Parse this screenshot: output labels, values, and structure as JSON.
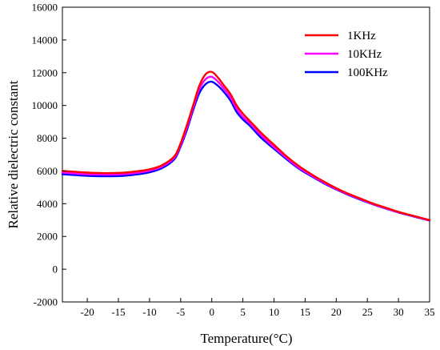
{
  "chart_data": {
    "type": "line",
    "title": "",
    "xlabel": "Temperature(°C)",
    "ylabel": "Relative dielectric constant",
    "xlim": [
      -24,
      35
    ],
    "ylim": [
      -2000,
      16000
    ],
    "xticks": [
      -20,
      -15,
      -10,
      -5,
      0,
      5,
      10,
      15,
      20,
      25,
      30,
      35
    ],
    "yticks": [
      -2000,
      0,
      2000,
      4000,
      6000,
      8000,
      10000,
      12000,
      14000,
      16000
    ],
    "grid": false,
    "legend_position": "top-right",
    "series": [
      {
        "name": "1KHz",
        "color": "#ff0000",
        "x": [
          -24,
          -22,
          -20,
          -18,
          -16,
          -14,
          -12,
          -10,
          -8,
          -6,
          -5,
          -4,
          -3,
          -2,
          -1,
          0,
          1,
          2,
          3,
          4,
          5,
          6,
          7,
          8,
          10,
          12,
          14,
          16,
          18,
          20,
          22,
          24,
          26,
          28,
          30,
          32,
          35
        ],
        "y": [
          6000,
          5950,
          5900,
          5870,
          5870,
          5900,
          5980,
          6100,
          6350,
          6900,
          7700,
          8800,
          10000,
          11200,
          11900,
          12050,
          11700,
          11200,
          10700,
          10000,
          9500,
          9100,
          8700,
          8300,
          7600,
          6900,
          6300,
          5800,
          5350,
          4950,
          4600,
          4300,
          4000,
          3750,
          3500,
          3300,
          3000
        ]
      },
      {
        "name": "10KHz",
        "color": "#ff00ff",
        "x": [
          -24,
          -22,
          -20,
          -18,
          -16,
          -14,
          -12,
          -10,
          -8,
          -6,
          -5,
          -4,
          -3,
          -2,
          -1,
          0,
          1,
          2,
          3,
          4,
          5,
          6,
          7,
          8,
          10,
          12,
          14,
          16,
          18,
          20,
          22,
          24,
          26,
          28,
          30,
          32,
          35
        ],
        "y": [
          5900,
          5850,
          5800,
          5780,
          5780,
          5810,
          5890,
          6020,
          6270,
          6820,
          7600,
          8650,
          9850,
          11000,
          11600,
          11750,
          11450,
          11000,
          10500,
          9800,
          9300,
          8950,
          8550,
          8150,
          7450,
          6800,
          6200,
          5730,
          5290,
          4900,
          4560,
          4260,
          3970,
          3720,
          3480,
          3280,
          2990
        ]
      },
      {
        "name": "100KHz",
        "color": "#0000ff",
        "x": [
          -24,
          -22,
          -20,
          -18,
          -16,
          -14,
          -12,
          -10,
          -8,
          -6,
          -5,
          -4,
          -3,
          -2,
          -1,
          0,
          1,
          2,
          3,
          4,
          5,
          6,
          7,
          8,
          10,
          12,
          14,
          16,
          18,
          20,
          22,
          24,
          26,
          28,
          30,
          32,
          35
        ],
        "y": [
          5800,
          5750,
          5700,
          5680,
          5680,
          5710,
          5790,
          5920,
          6170,
          6720,
          7500,
          8500,
          9700,
          10750,
          11300,
          11450,
          11200,
          10800,
          10300,
          9600,
          9150,
          8800,
          8400,
          8000,
          7350,
          6720,
          6140,
          5680,
          5250,
          4870,
          4530,
          4230,
          3950,
          3700,
          3460,
          3260,
          2970
        ]
      }
    ]
  }
}
